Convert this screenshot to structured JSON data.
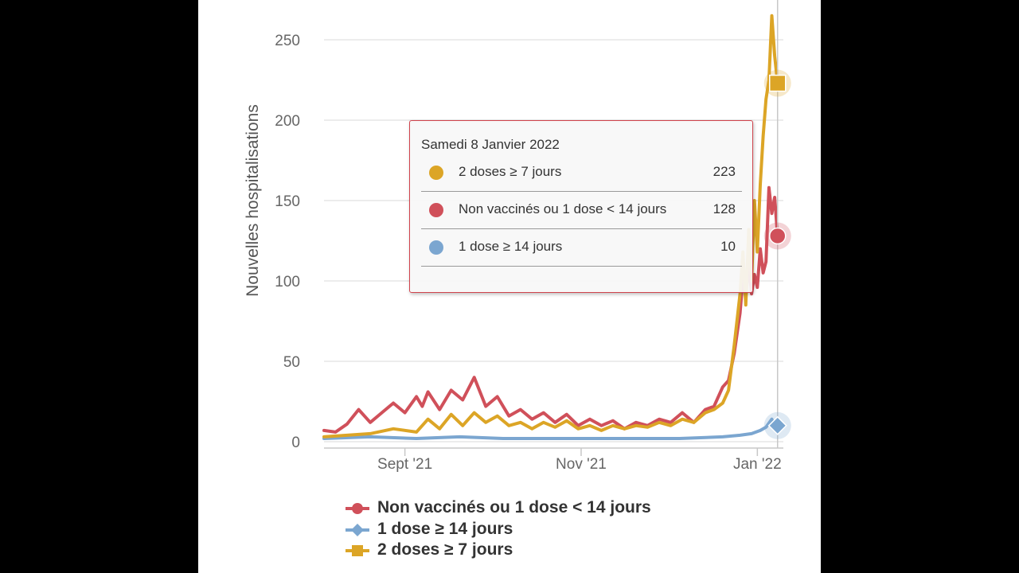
{
  "chart_data": {
    "type": "line",
    "ylabel": "Nouvelles hospitalisations",
    "ylim": [
      0,
      250
    ],
    "yticks": [
      0,
      50,
      100,
      150,
      200,
      250
    ],
    "xticks": [
      {
        "label": "Sept '21",
        "date": "2021-09-01"
      },
      {
        "label": "Nov '21",
        "date": "2021-11-01"
      },
      {
        "label": "Jan '22",
        "date": "2022-01-01"
      }
    ],
    "xlim": [
      "2021-08-04",
      "2022-01-10"
    ],
    "crosshair_date": "2022-01-08",
    "series": [
      {
        "name": "Non vaccinés ou 1 dose < 14 jours",
        "color": "#d0505a",
        "marker": "circle",
        "points": [
          [
            "2021-08-04",
            7
          ],
          [
            "2021-08-08",
            6
          ],
          [
            "2021-08-12",
            11
          ],
          [
            "2021-08-16",
            20
          ],
          [
            "2021-08-20",
            12
          ],
          [
            "2021-08-24",
            18
          ],
          [
            "2021-08-28",
            24
          ],
          [
            "2021-09-01",
            18
          ],
          [
            "2021-09-05",
            28
          ],
          [
            "2021-09-07",
            22
          ],
          [
            "2021-09-09",
            31
          ],
          [
            "2021-09-13",
            20
          ],
          [
            "2021-09-17",
            32
          ],
          [
            "2021-09-21",
            26
          ],
          [
            "2021-09-25",
            40
          ],
          [
            "2021-09-29",
            22
          ],
          [
            "2021-10-03",
            28
          ],
          [
            "2021-10-07",
            16
          ],
          [
            "2021-10-11",
            20
          ],
          [
            "2021-10-15",
            14
          ],
          [
            "2021-10-19",
            18
          ],
          [
            "2021-10-23",
            12
          ],
          [
            "2021-10-27",
            17
          ],
          [
            "2021-10-31",
            10
          ],
          [
            "2021-11-04",
            14
          ],
          [
            "2021-11-08",
            10
          ],
          [
            "2021-11-12",
            13
          ],
          [
            "2021-11-16",
            8
          ],
          [
            "2021-11-20",
            12
          ],
          [
            "2021-11-24",
            10
          ],
          [
            "2021-11-28",
            14
          ],
          [
            "2021-12-02",
            12
          ],
          [
            "2021-12-06",
            18
          ],
          [
            "2021-12-10",
            12
          ],
          [
            "2021-12-14",
            20
          ],
          [
            "2021-12-17",
            22
          ],
          [
            "2021-12-20",
            34
          ],
          [
            "2021-12-22",
            38
          ],
          [
            "2021-12-24",
            55
          ],
          [
            "2021-12-26",
            80
          ],
          [
            "2021-12-27",
            102
          ],
          [
            "2021-12-28",
            90
          ],
          [
            "2021-12-29",
            110
          ],
          [
            "2021-12-30",
            92
          ],
          [
            "2021-12-31",
            104
          ],
          [
            "2022-01-01",
            96
          ],
          [
            "2022-01-02",
            120
          ],
          [
            "2022-01-03",
            105
          ],
          [
            "2022-01-04",
            112
          ],
          [
            "2022-01-05",
            158
          ],
          [
            "2022-01-06",
            142
          ],
          [
            "2022-01-07",
            152
          ],
          [
            "2022-01-08",
            128
          ]
        ]
      },
      {
        "name": "1 dose ≥ 14 jours",
        "color": "#7ba6d0",
        "marker": "diamond",
        "points": [
          [
            "2021-08-04",
            2
          ],
          [
            "2021-08-20",
            3
          ],
          [
            "2021-09-05",
            2
          ],
          [
            "2021-09-20",
            3
          ],
          [
            "2021-10-05",
            2
          ],
          [
            "2021-10-20",
            2
          ],
          [
            "2021-11-05",
            2
          ],
          [
            "2021-11-20",
            2
          ],
          [
            "2021-12-05",
            2
          ],
          [
            "2021-12-20",
            3
          ],
          [
            "2021-12-26",
            4
          ],
          [
            "2021-12-30",
            5
          ],
          [
            "2022-01-02",
            7
          ],
          [
            "2022-01-04",
            9
          ],
          [
            "2022-01-06",
            14
          ],
          [
            "2022-01-07",
            9
          ],
          [
            "2022-01-08",
            10
          ]
        ]
      },
      {
        "name": "2 doses ≥ 7 jours",
        "color": "#dca526",
        "marker": "square",
        "points": [
          [
            "2021-08-04",
            3
          ],
          [
            "2021-08-12",
            4
          ],
          [
            "2021-08-20",
            5
          ],
          [
            "2021-08-28",
            8
          ],
          [
            "2021-09-05",
            6
          ],
          [
            "2021-09-09",
            14
          ],
          [
            "2021-09-13",
            8
          ],
          [
            "2021-09-17",
            17
          ],
          [
            "2021-09-21",
            10
          ],
          [
            "2021-09-25",
            18
          ],
          [
            "2021-09-29",
            12
          ],
          [
            "2021-10-03",
            16
          ],
          [
            "2021-10-07",
            10
          ],
          [
            "2021-10-11",
            12
          ],
          [
            "2021-10-15",
            8
          ],
          [
            "2021-10-19",
            12
          ],
          [
            "2021-10-23",
            9
          ],
          [
            "2021-10-27",
            13
          ],
          [
            "2021-10-31",
            8
          ],
          [
            "2021-11-04",
            10
          ],
          [
            "2021-11-08",
            7
          ],
          [
            "2021-11-12",
            10
          ],
          [
            "2021-11-16",
            8
          ],
          [
            "2021-11-20",
            10
          ],
          [
            "2021-11-24",
            9
          ],
          [
            "2021-11-28",
            12
          ],
          [
            "2021-12-02",
            10
          ],
          [
            "2021-12-06",
            14
          ],
          [
            "2021-12-10",
            12
          ],
          [
            "2021-12-14",
            18
          ],
          [
            "2021-12-17",
            20
          ],
          [
            "2021-12-20",
            24
          ],
          [
            "2021-12-22",
            32
          ],
          [
            "2021-12-24",
            60
          ],
          [
            "2021-12-26",
            92
          ],
          [
            "2021-12-27",
            118
          ],
          [
            "2021-12-28",
            85
          ],
          [
            "2021-12-29",
            132
          ],
          [
            "2021-12-30",
            100
          ],
          [
            "2021-12-31",
            150
          ],
          [
            "2022-01-01",
            118
          ],
          [
            "2022-01-02",
            160
          ],
          [
            "2022-01-03",
            190
          ],
          [
            "2022-01-04",
            213
          ],
          [
            "2022-01-05",
            225
          ],
          [
            "2022-01-06",
            265
          ],
          [
            "2022-01-07",
            240
          ],
          [
            "2022-01-08",
            223
          ]
        ]
      }
    ],
    "legend_position": "bottom-left"
  },
  "tooltip": {
    "date": "Samedi 8 Janvier 2022",
    "rows": [
      {
        "name": "2 doses ≥ 7 jours",
        "value": "223",
        "color": "#dca526"
      },
      {
        "name": "Non vaccinés ou 1 dose < 14 jours",
        "value": "128",
        "color": "#d0505a"
      },
      {
        "name": "1 dose ≥ 14 jours",
        "value": "10",
        "color": "#7ba6d0"
      }
    ]
  },
  "legend": [
    {
      "name": "Non vaccinés ou 1 dose < 14 jours",
      "color": "#d0505a",
      "marker": "circle"
    },
    {
      "name": "1 dose ≥ 14 jours",
      "color": "#7ba6d0",
      "marker": "diamond"
    },
    {
      "name": "2 doses ≥ 7 jours",
      "color": "#dca526",
      "marker": "square"
    }
  ]
}
